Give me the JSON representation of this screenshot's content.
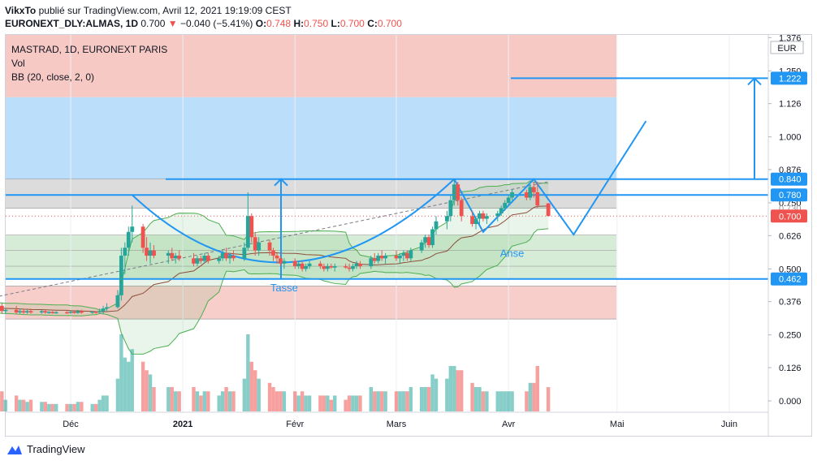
{
  "header": {
    "author": "VikxTo",
    "published_text": "publié sur TradingView.com, Avril 12, 2021 19:19:09 CEST",
    "symbol": "EURONEXT_DLY:ALMAS, 1D",
    "last": "0.700",
    "change": "−0.040 (−5.41%)",
    "open_label": "O:",
    "open": "0.748",
    "high_label": "H:",
    "high": "0.750",
    "low_label": "L:",
    "low": "0.700",
    "close_label": "C:",
    "close": "0.700"
  },
  "footer": {
    "brand": "TradingView"
  },
  "colors": {
    "up": "#26a69a",
    "down": "#ef5350",
    "drawing": "#2196f3",
    "bb_band": "#4caf50",
    "bb_basis": "#8d4e3c",
    "zone_red": "#f7c9c5",
    "zone_blue": "#bbdefb",
    "zone_green": "#c8e6c9",
    "zone_grey": "#d6d6d6"
  },
  "chart_data": {
    "type": "candlestick",
    "legend": [
      "MASTRAD, 1D, EURONEXT PARIS",
      "Vol",
      "BB (20, close, 2, 0)"
    ],
    "currency": "EUR",
    "y_ticks": [
      "1.376",
      "1.250",
      "1.126",
      "1.000",
      "0.876",
      "0.750",
      "0.626",
      "0.500",
      "0.376",
      "0.250",
      "0.126",
      "0.000"
    ],
    "x_ticks": [
      "Déc",
      "2021",
      "Févr",
      "Mars",
      "Avr",
      "Mai",
      "Juin"
    ],
    "price_labels": [
      {
        "text": "1.222",
        "value": 1.222,
        "style": "filled"
      },
      {
        "text": "0.840",
        "value": 0.84,
        "style": "filled"
      },
      {
        "text": "0.780",
        "value": 0.78,
        "style": "filled"
      },
      {
        "text": "0.730",
        "value": 0.73,
        "style": "hidden"
      },
      {
        "text": "0.700",
        "value": 0.7,
        "style": "last"
      },
      {
        "text": "0.462",
        "value": 0.462,
        "style": "filled"
      }
    ],
    "annotations": [
      {
        "text": "Tasse",
        "x": "2021-01-29",
        "y": 0.415
      },
      {
        "text": "Anse",
        "x": "2021-04-02",
        "y": 0.545
      }
    ],
    "last_close": 0.7,
    "levels": [
      0.84,
      0.78,
      0.462
    ],
    "candles": [
      [
        "2020-11-02",
        0.36,
        0.37,
        0.33,
        0.34
      ],
      [
        "2020-11-03",
        0.34,
        0.37,
        0.33,
        0.36
      ],
      [
        "2020-11-04",
        0.36,
        0.38,
        0.34,
        0.35
      ],
      [
        "2020-11-05",
        0.35,
        0.37,
        0.33,
        0.34
      ],
      [
        "2020-11-06",
        0.34,
        0.36,
        0.33,
        0.35
      ],
      [
        "2020-11-09",
        0.35,
        0.38,
        0.34,
        0.37
      ],
      [
        "2020-11-10",
        0.37,
        0.38,
        0.34,
        0.35
      ],
      [
        "2020-11-11",
        0.35,
        0.37,
        0.34,
        0.36
      ],
      [
        "2020-11-12",
        0.36,
        0.37,
        0.33,
        0.34
      ],
      [
        "2020-11-13",
        0.34,
        0.35,
        0.33,
        0.345
      ],
      [
        "2020-11-16",
        0.345,
        0.36,
        0.33,
        0.335
      ],
      [
        "2020-11-17",
        0.335,
        0.35,
        0.33,
        0.34
      ],
      [
        "2020-11-18",
        0.34,
        0.35,
        0.33,
        0.335
      ],
      [
        "2020-11-19",
        0.335,
        0.345,
        0.33,
        0.34
      ],
      [
        "2020-11-20",
        0.34,
        0.35,
        0.33,
        0.335
      ],
      [
        "2020-11-23",
        0.335,
        0.345,
        0.33,
        0.34
      ],
      [
        "2020-11-24",
        0.34,
        0.345,
        0.33,
        0.335
      ],
      [
        "2020-11-25",
        0.335,
        0.34,
        0.33,
        0.337
      ],
      [
        "2020-11-26",
        0.337,
        0.34,
        0.33,
        0.332
      ],
      [
        "2020-11-27",
        0.332,
        0.34,
        0.33,
        0.336
      ],
      [
        "2020-11-30",
        0.336,
        0.34,
        0.33,
        0.334
      ],
      [
        "2020-12-01",
        0.334,
        0.34,
        0.33,
        0.338
      ],
      [
        "2020-12-02",
        0.338,
        0.34,
        0.33,
        0.333
      ],
      [
        "2020-12-03",
        0.333,
        0.345,
        0.33,
        0.34
      ],
      [
        "2020-12-04",
        0.34,
        0.345,
        0.33,
        0.334
      ],
      [
        "2020-12-07",
        0.334,
        0.34,
        0.33,
        0.338
      ],
      [
        "2020-12-08",
        0.338,
        0.34,
        0.33,
        0.335
      ],
      [
        "2020-12-09",
        0.335,
        0.35,
        0.33,
        0.34
      ],
      [
        "2020-12-10",
        0.34,
        0.36,
        0.33,
        0.35
      ],
      [
        "2020-12-11",
        0.35,
        0.37,
        0.34,
        0.355
      ],
      [
        "2020-12-14",
        0.355,
        0.42,
        0.35,
        0.4
      ],
      [
        "2020-12-15",
        0.4,
        0.58,
        0.38,
        0.55
      ],
      [
        "2020-12-16",
        0.55,
        0.6,
        0.48,
        0.58
      ],
      [
        "2020-12-17",
        0.58,
        0.66,
        0.55,
        0.64
      ],
      [
        "2020-12-18",
        0.64,
        0.74,
        0.6,
        0.66
      ],
      [
        "2020-12-21",
        0.66,
        0.67,
        0.56,
        0.58
      ],
      [
        "2020-12-22",
        0.58,
        0.62,
        0.53,
        0.55
      ],
      [
        "2020-12-23",
        0.55,
        0.6,
        0.52,
        0.57
      ],
      [
        "2020-12-24",
        0.57,
        0.59,
        0.54,
        0.55
      ],
      [
        "2020-12-28",
        0.55,
        0.57,
        0.52,
        0.56
      ],
      [
        "2020-12-29",
        0.56,
        0.58,
        0.53,
        0.54
      ],
      [
        "2020-12-30",
        0.54,
        0.56,
        0.52,
        0.55
      ],
      [
        "2020-12-31",
        0.55,
        0.57,
        0.53,
        0.54
      ],
      [
        "2021-01-04",
        0.54,
        0.56,
        0.51,
        0.52
      ],
      [
        "2021-01-05",
        0.52,
        0.55,
        0.51,
        0.54
      ],
      [
        "2021-01-06",
        0.54,
        0.55,
        0.52,
        0.53
      ],
      [
        "2021-01-07",
        0.53,
        0.56,
        0.52,
        0.55
      ],
      [
        "2021-01-08",
        0.55,
        0.56,
        0.52,
        0.53
      ],
      [
        "2021-01-11",
        0.53,
        0.55,
        0.52,
        0.54
      ],
      [
        "2021-01-12",
        0.54,
        0.57,
        0.53,
        0.56
      ],
      [
        "2021-01-13",
        0.56,
        0.58,
        0.53,
        0.54
      ],
      [
        "2021-01-14",
        0.54,
        0.56,
        0.52,
        0.55
      ],
      [
        "2021-01-15",
        0.55,
        0.57,
        0.53,
        0.54
      ],
      [
        "2021-01-18",
        0.54,
        0.6,
        0.53,
        0.58
      ],
      [
        "2021-01-19",
        0.58,
        0.79,
        0.57,
        0.7
      ],
      [
        "2021-01-20",
        0.7,
        0.71,
        0.6,
        0.62
      ],
      [
        "2021-01-21",
        0.62,
        0.64,
        0.55,
        0.57
      ],
      [
        "2021-01-22",
        0.57,
        0.62,
        0.55,
        0.6
      ],
      [
        "2021-01-25",
        0.6,
        0.61,
        0.55,
        0.57
      ],
      [
        "2021-01-26",
        0.57,
        0.58,
        0.53,
        0.55
      ],
      [
        "2021-01-27",
        0.55,
        0.56,
        0.52,
        0.54
      ],
      [
        "2021-01-28",
        0.54,
        0.55,
        0.51,
        0.52
      ],
      [
        "2021-01-29",
        0.52,
        0.54,
        0.5,
        0.53
      ],
      [
        "2021-02-01",
        0.53,
        0.54,
        0.5,
        0.51
      ],
      [
        "2021-02-02",
        0.51,
        0.53,
        0.5,
        0.52
      ],
      [
        "2021-02-03",
        0.52,
        0.53,
        0.49,
        0.5
      ],
      [
        "2021-02-04",
        0.5,
        0.52,
        0.49,
        0.51
      ],
      [
        "2021-02-05",
        0.51,
        0.53,
        0.5,
        0.52
      ],
      [
        "2021-02-08",
        0.52,
        0.53,
        0.5,
        0.51
      ],
      [
        "2021-02-09",
        0.51,
        0.52,
        0.49,
        0.5
      ],
      [
        "2021-02-10",
        0.5,
        0.52,
        0.49,
        0.51
      ],
      [
        "2021-02-11",
        0.51,
        0.52,
        0.5,
        0.505
      ],
      [
        "2021-02-12",
        0.505,
        0.52,
        0.49,
        0.51
      ],
      [
        "2021-02-15",
        0.51,
        0.52,
        0.5,
        0.505
      ],
      [
        "2021-02-16",
        0.505,
        0.52,
        0.49,
        0.5
      ],
      [
        "2021-02-17",
        0.5,
        0.52,
        0.49,
        0.51
      ],
      [
        "2021-02-18",
        0.51,
        0.53,
        0.5,
        0.52
      ],
      [
        "2021-02-19",
        0.52,
        0.53,
        0.5,
        0.51
      ],
      [
        "2021-02-22",
        0.51,
        0.55,
        0.5,
        0.54
      ],
      [
        "2021-02-23",
        0.54,
        0.56,
        0.52,
        0.53
      ],
      [
        "2021-02-24",
        0.53,
        0.56,
        0.52,
        0.55
      ],
      [
        "2021-02-25",
        0.55,
        0.57,
        0.53,
        0.54
      ],
      [
        "2021-02-26",
        0.54,
        0.56,
        0.52,
        0.55
      ],
      [
        "2021-03-01",
        0.55,
        0.57,
        0.53,
        0.54
      ],
      [
        "2021-03-02",
        0.54,
        0.56,
        0.52,
        0.55
      ],
      [
        "2021-03-03",
        0.55,
        0.57,
        0.53,
        0.56
      ],
      [
        "2021-03-04",
        0.56,
        0.57,
        0.53,
        0.54
      ],
      [
        "2021-03-05",
        0.54,
        0.58,
        0.53,
        0.57
      ],
      [
        "2021-03-08",
        0.57,
        0.61,
        0.56,
        0.6
      ],
      [
        "2021-03-09",
        0.6,
        0.63,
        0.58,
        0.62
      ],
      [
        "2021-03-10",
        0.62,
        0.63,
        0.58,
        0.59
      ],
      [
        "2021-03-11",
        0.59,
        0.66,
        0.58,
        0.65
      ],
      [
        "2021-03-12",
        0.65,
        0.7,
        0.63,
        0.68
      ],
      [
        "2021-03-15",
        0.68,
        0.72,
        0.65,
        0.7
      ],
      [
        "2021-03-16",
        0.7,
        0.78,
        0.68,
        0.76
      ],
      [
        "2021-03-17",
        0.76,
        0.84,
        0.74,
        0.82
      ],
      [
        "2021-03-18",
        0.82,
        0.83,
        0.74,
        0.76
      ],
      [
        "2021-03-19",
        0.76,
        0.77,
        0.68,
        0.7
      ],
      [
        "2021-03-22",
        0.7,
        0.72,
        0.66,
        0.67
      ],
      [
        "2021-03-23",
        0.67,
        0.7,
        0.65,
        0.69
      ],
      [
        "2021-03-24",
        0.69,
        0.72,
        0.67,
        0.71
      ],
      [
        "2021-03-25",
        0.71,
        0.72,
        0.68,
        0.69
      ],
      [
        "2021-03-26",
        0.69,
        0.71,
        0.67,
        0.7
      ],
      [
        "2021-03-29",
        0.7,
        0.72,
        0.68,
        0.71
      ],
      [
        "2021-03-30",
        0.71,
        0.74,
        0.7,
        0.73
      ],
      [
        "2021-03-31",
        0.73,
        0.76,
        0.72,
        0.75
      ],
      [
        "2021-04-01",
        0.75,
        0.78,
        0.74,
        0.77
      ],
      [
        "2021-04-02",
        0.77,
        0.8,
        0.76,
        0.79
      ],
      [
        "2021-04-06",
        0.79,
        0.8,
        0.76,
        0.77
      ],
      [
        "2021-04-07",
        0.77,
        0.82,
        0.76,
        0.81
      ],
      [
        "2021-04-08",
        0.81,
        0.83,
        0.77,
        0.79
      ],
      [
        "2021-04-09",
        0.79,
        0.83,
        0.73,
        0.74
      ],
      [
        "2021-04-12",
        0.748,
        0.75,
        0.7,
        0.7
      ]
    ]
  }
}
